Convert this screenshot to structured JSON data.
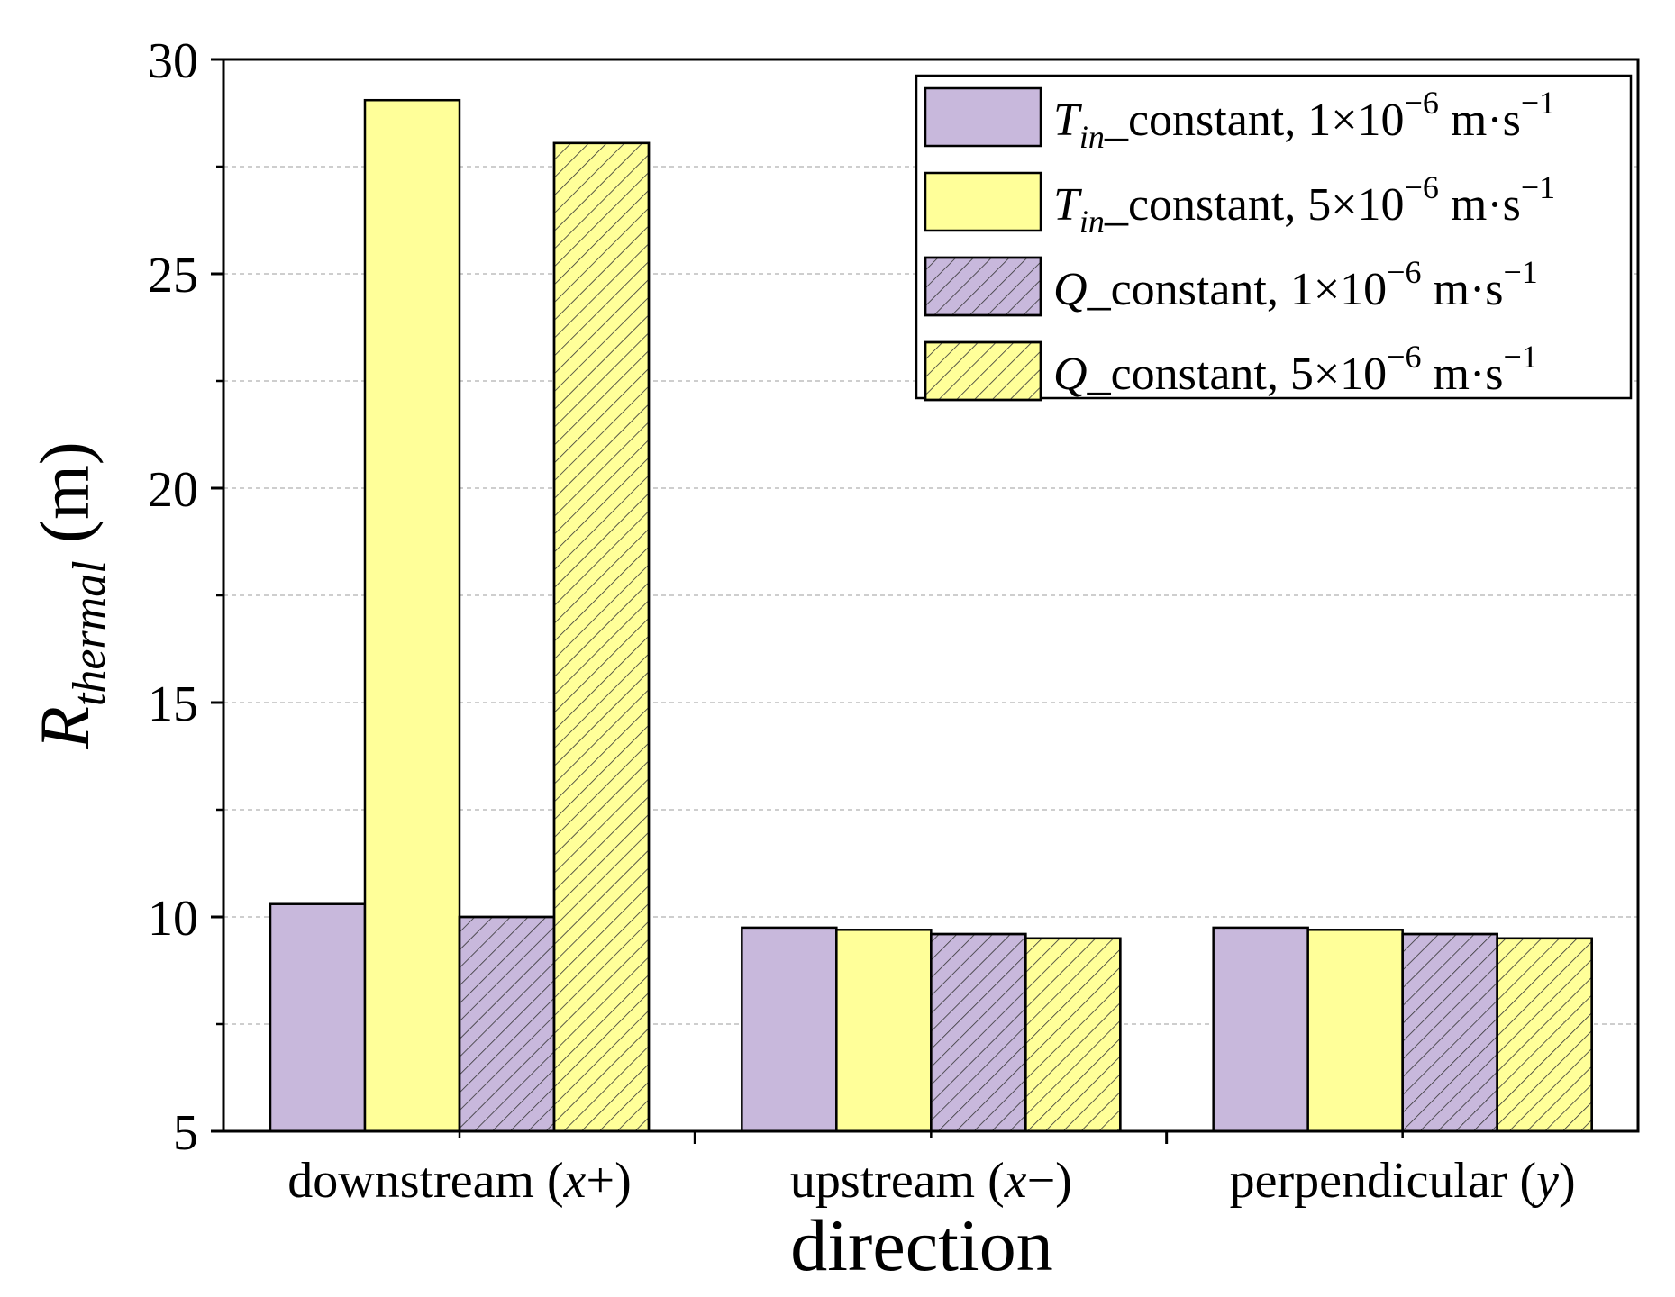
{
  "chart_data": {
    "type": "bar",
    "title": "",
    "xlabel": "direction",
    "ylabel": {
      "main": "R",
      "subscript": "thermal",
      "unit": "(m)"
    },
    "ylim": [
      5,
      30
    ],
    "yticks": [
      5,
      10,
      15,
      20,
      25,
      30
    ],
    "yminor": [
      7.5,
      12.5,
      17.5,
      22.5,
      27.5
    ],
    "grid": true,
    "legend_position": "top-right",
    "categories": [
      {
        "text": "downstream (",
        "var": "x",
        "suffix": "+)"
      },
      {
        "text": "upstream (",
        "var": "x",
        "suffix": "−)"
      },
      {
        "text": "perpendicular (",
        "var": "y",
        "suffix": ")"
      }
    ],
    "series": [
      {
        "name": "T_in_constant, 1×10⁻⁶ m·s⁻¹",
        "legend": {
          "var": "T",
          "sub": "in",
          "text": "_constant, 1×10",
          "sup": "−6",
          "unit": " m·s",
          "unitsup": "−1"
        },
        "color": "#c8b8dc",
        "hatch": false,
        "values": [
          10.3,
          9.75,
          9.75
        ]
      },
      {
        "name": "T_in_constant, 5×10⁻⁶ m·s⁻¹",
        "legend": {
          "var": "T",
          "sub": "in",
          "text": "_constant, 5×10",
          "sup": "−6",
          "unit": " m·s",
          "unitsup": "−1"
        },
        "color": "#ffff99",
        "hatch": false,
        "values": [
          29.05,
          9.7,
          9.7
        ]
      },
      {
        "name": "Q_constant, 1×10⁻⁶ m·s⁻¹",
        "legend": {
          "var": "Q",
          "sub": "",
          "text": "_constant, 1×10",
          "sup": "−6",
          "unit": " m·s",
          "unitsup": "−1"
        },
        "color": "#c8b8dc",
        "hatch": true,
        "values": [
          10.0,
          9.6,
          9.6
        ]
      },
      {
        "name": "Q_constant, 5×10⁻⁶ m·s⁻¹",
        "legend": {
          "var": "Q",
          "sub": "",
          "text": "_constant, 5×10",
          "sup": "−6",
          "unit": " m·s",
          "unitsup": "−1"
        },
        "color": "#ffff99",
        "hatch": true,
        "values": [
          28.05,
          9.5,
          9.5
        ]
      }
    ]
  }
}
